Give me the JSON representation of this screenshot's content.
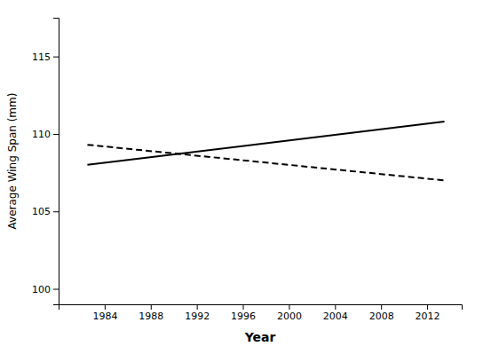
{
  "chart_data": {
    "type": "line",
    "x": [
      1982.5,
      2013.5
    ],
    "series": [
      {
        "values": [
          108.0,
          110.8
        ],
        "color": "#000000",
        "line_style": "solid"
      },
      {
        "values": [
          109.3,
          107.0
        ],
        "color": "#000000",
        "line_style": "dashed"
      }
    ],
    "xlim": [
      1980,
      2015
    ],
    "ylim": [
      99.0,
      117.5
    ],
    "xticks": [
      1984,
      1988,
      1992,
      1996,
      2000,
      2004,
      2008,
      2012
    ],
    "yticks": [
      100,
      105,
      110,
      115
    ],
    "xlabel": "Year",
    "ylabel": "Average Wing Span (mm)",
    "grid": false
  }
}
